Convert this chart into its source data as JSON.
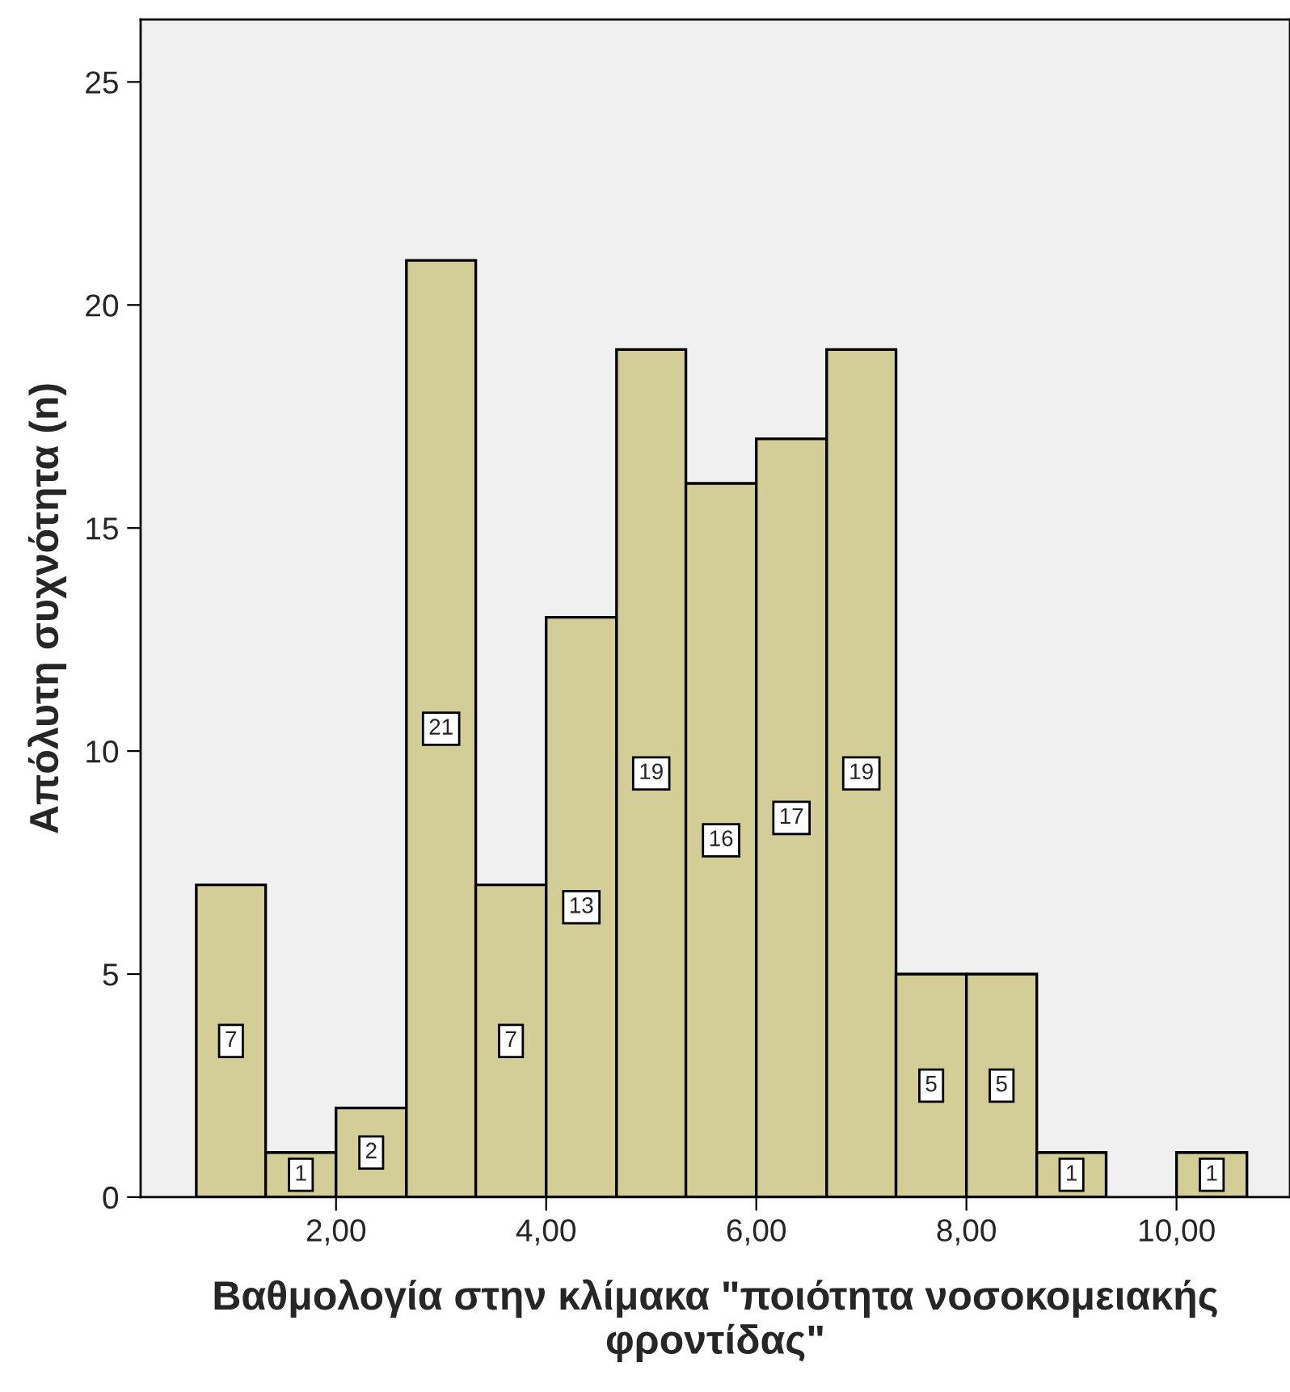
{
  "chart_data": {
    "type": "histogram",
    "xlabel": "Βαθμολογία στην κλίμακα \"ποιότητα νοσοκομειακής φροντίδας\"",
    "ylabel": "Απόλυτη συχνότητα (n)",
    "bins": [
      0.67,
      1.33,
      2,
      2.67,
      3.33,
      4,
      4.67,
      5.33,
      6,
      6.67,
      7.33,
      8,
      8.67,
      9.33,
      10,
      10.67
    ],
    "values": [
      7,
      1,
      2,
      21,
      7,
      13,
      19,
      16,
      17,
      19,
      5,
      5,
      1,
      0,
      1
    ],
    "value_labels": [
      "7",
      "1",
      "2",
      "21",
      "7",
      "13",
      "19",
      "16",
      "17",
      "19",
      "5",
      "5",
      "1",
      null,
      "1"
    ],
    "color": "#d3ce97",
    "xlim": [
      0.14,
      11.08
    ],
    "ylim": [
      0,
      26.4
    ],
    "xticks": [
      {
        "value": 2,
        "label": "2,00"
      },
      {
        "value": 4,
        "label": "4,00"
      },
      {
        "value": 6,
        "label": "6,00"
      },
      {
        "value": 8,
        "label": "8,00"
      },
      {
        "value": 10,
        "label": "10,00"
      }
    ],
    "yticks": [
      0,
      5,
      10,
      15,
      20,
      25
    ],
    "grid": false,
    "legend": false
  }
}
